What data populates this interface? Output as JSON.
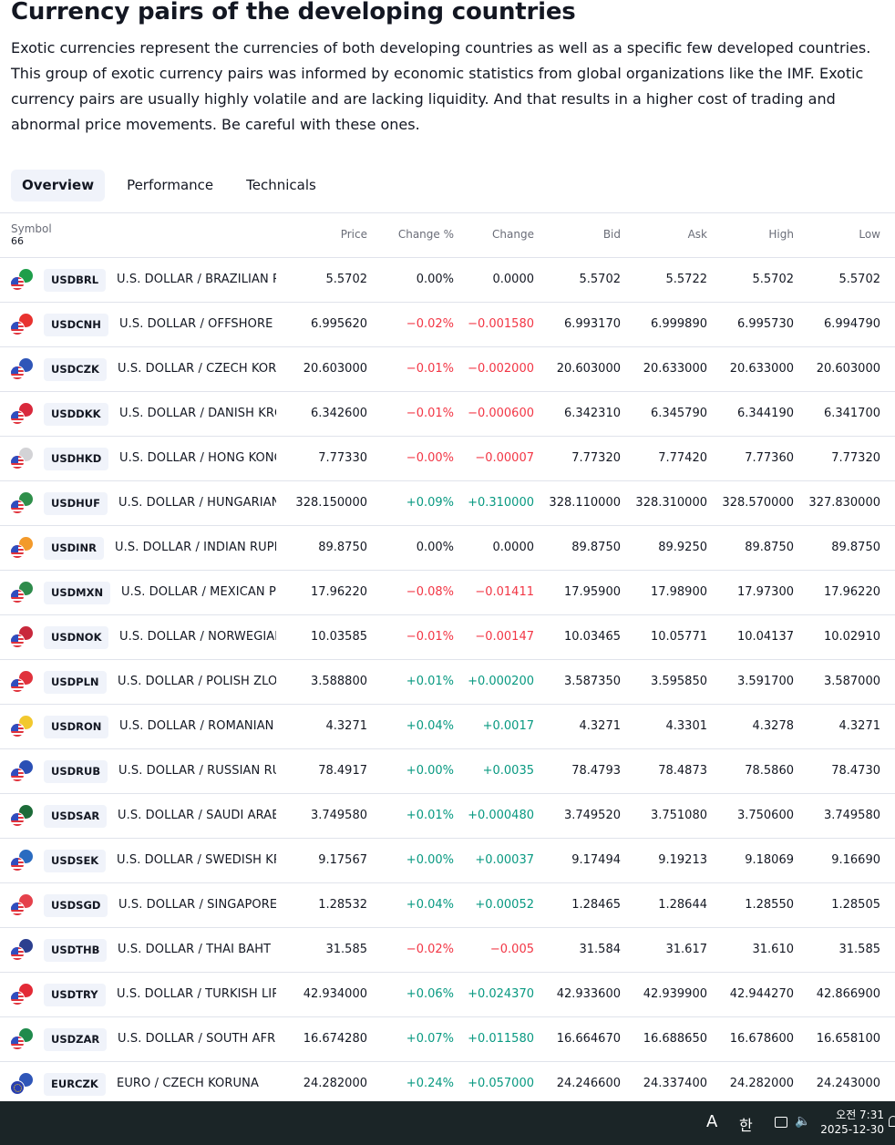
{
  "page": {
    "title": "Currency pairs of the developing countries",
    "intro": "Exotic currencies represent the currencies of both developing countries as well as a specific few developed countries. This group of exotic currency pairs was informed by economic statistics from global organizations like the IMF. Exotic currency pairs are usually highly volatile and are lacking liquidity. And that results in a higher cost of trading and abnormal price movements. Be careful with these ones."
  },
  "tabs": [
    {
      "label": "Overview",
      "active": true
    },
    {
      "label": "Performance",
      "active": false
    },
    {
      "label": "Technicals",
      "active": false
    }
  ],
  "table": {
    "headers": {
      "symbol": "Symbol",
      "count": "66",
      "price": "Price",
      "change_pct": "Change %",
      "change": "Change",
      "bid": "Bid",
      "ask": "Ask",
      "high": "High",
      "low": "Low"
    },
    "rows": [
      {
        "ticker": "USDBRL",
        "desc": "U.S. DOLLAR / BRAZILIAN R...",
        "price": "5.5702",
        "chg_pct": "0.00%",
        "chg": "0.0000",
        "bid": "5.5702",
        "ask": "5.5722",
        "high": "5.5702",
        "low": "5.5702",
        "dir": "neu",
        "flag_color": "#1e9e4a"
      },
      {
        "ticker": "USDCNH",
        "desc": "U.S. DOLLAR / OFFSHORE C...",
        "price": "6.995620",
        "chg_pct": "−0.02%",
        "chg": "−0.001580",
        "bid": "6.993170",
        "ask": "6.999890",
        "high": "6.995730",
        "low": "6.994790",
        "dir": "neg",
        "flag_color": "#e8322f"
      },
      {
        "ticker": "USDCZK",
        "desc": "U.S. DOLLAR / CZECH KORU...",
        "price": "20.603000",
        "chg_pct": "−0.01%",
        "chg": "−0.002000",
        "bid": "20.603000",
        "ask": "20.633000",
        "high": "20.633000",
        "low": "20.603000",
        "dir": "neg",
        "flag_color": "#2f56b8"
      },
      {
        "ticker": "USDDKK",
        "desc": "U.S. DOLLAR / DANISH KRONE",
        "price": "6.342600",
        "chg_pct": "−0.01%",
        "chg": "−0.000600",
        "bid": "6.342310",
        "ask": "6.345790",
        "high": "6.344190",
        "low": "6.341700",
        "dir": "neg",
        "flag_color": "#d9293c"
      },
      {
        "ticker": "USDHKD",
        "desc": "U.S. DOLLAR / HONG KONG ...",
        "price": "7.77330",
        "chg_pct": "−0.00%",
        "chg": "−0.00007",
        "bid": "7.77320",
        "ask": "7.77420",
        "high": "7.77360",
        "low": "7.77320",
        "dir": "neg",
        "flag_color": "#d3d3d6"
      },
      {
        "ticker": "USDHUF",
        "desc": "U.S. DOLLAR / HUNGARIAN ...",
        "price": "328.150000",
        "chg_pct": "+0.09%",
        "chg": "+0.310000",
        "bid": "328.110000",
        "ask": "328.310000",
        "high": "328.570000",
        "low": "327.830000",
        "dir": "pos",
        "flag_color": "#2f8f4a"
      },
      {
        "ticker": "USDINR",
        "desc": "U.S. DOLLAR / INDIAN RUPEE",
        "price": "89.8750",
        "chg_pct": "0.00%",
        "chg": "0.0000",
        "bid": "89.8750",
        "ask": "89.9250",
        "high": "89.8750",
        "low": "89.8750",
        "dir": "neu",
        "flag_color": "#f39a2b"
      },
      {
        "ticker": "USDMXN",
        "desc": "U.S. DOLLAR / MEXICAN PESO",
        "price": "17.96220",
        "chg_pct": "−0.08%",
        "chg": "−0.01411",
        "bid": "17.95900",
        "ask": "17.98900",
        "high": "17.97300",
        "low": "17.96220",
        "dir": "neg",
        "flag_color": "#2e8b4b"
      },
      {
        "ticker": "USDNOK",
        "desc": "U.S. DOLLAR / NORWEGIAN ...",
        "price": "10.03585",
        "chg_pct": "−0.01%",
        "chg": "−0.00147",
        "bid": "10.03465",
        "ask": "10.05771",
        "high": "10.04137",
        "low": "10.02910",
        "dir": "neg",
        "flag_color": "#c8283c"
      },
      {
        "ticker": "USDPLN",
        "desc": "U.S. DOLLAR / POLISH ZLOTY",
        "price": "3.588800",
        "chg_pct": "+0.01%",
        "chg": "+0.000200",
        "bid": "3.587350",
        "ask": "3.595850",
        "high": "3.591700",
        "low": "3.587000",
        "dir": "pos",
        "flag_color": "#e0323c"
      },
      {
        "ticker": "USDRON",
        "desc": "U.S. DOLLAR / ROMANIAN L...",
        "price": "4.3271",
        "chg_pct": "+0.04%",
        "chg": "+0.0017",
        "bid": "4.3271",
        "ask": "4.3301",
        "high": "4.3278",
        "low": "4.3271",
        "dir": "pos",
        "flag_color": "#f2c82e"
      },
      {
        "ticker": "USDRUB",
        "desc": "U.S. DOLLAR / RUSSIAN RUB...",
        "price": "78.4917",
        "chg_pct": "+0.00%",
        "chg": "+0.0035",
        "bid": "78.4793",
        "ask": "78.4873",
        "high": "78.5860",
        "low": "78.4730",
        "dir": "pos",
        "flag_color": "#2a4fb5"
      },
      {
        "ticker": "USDSAR",
        "desc": "U.S. DOLLAR / SAUDI ARABI...",
        "price": "3.749580",
        "chg_pct": "+0.01%",
        "chg": "+0.000480",
        "bid": "3.749520",
        "ask": "3.751080",
        "high": "3.750600",
        "low": "3.749580",
        "dir": "pos",
        "flag_color": "#1c6b38"
      },
      {
        "ticker": "USDSEK",
        "desc": "U.S. DOLLAR / SWEDISH KRO...",
        "price": "9.17567",
        "chg_pct": "+0.00%",
        "chg": "+0.00037",
        "bid": "9.17494",
        "ask": "9.19213",
        "high": "9.18069",
        "low": "9.16690",
        "dir": "pos",
        "flag_color": "#2a6bc0"
      },
      {
        "ticker": "USDSGD",
        "desc": "U.S. DOLLAR / SINGAPORE D...",
        "price": "1.28532",
        "chg_pct": "+0.04%",
        "chg": "+0.00052",
        "bid": "1.28465",
        "ask": "1.28644",
        "high": "1.28550",
        "low": "1.28505",
        "dir": "pos",
        "flag_color": "#e5414b"
      },
      {
        "ticker": "USDTHB",
        "desc": "U.S. DOLLAR / THAI BAHT",
        "price": "31.585",
        "chg_pct": "−0.02%",
        "chg": "−0.005",
        "bid": "31.584",
        "ask": "31.617",
        "high": "31.610",
        "low": "31.585",
        "dir": "neg",
        "flag_color": "#2c3f8f"
      },
      {
        "ticker": "USDTRY",
        "desc": "U.S. DOLLAR / TURKISH LIRA",
        "price": "42.934000",
        "chg_pct": "+0.06%",
        "chg": "+0.024370",
        "bid": "42.933600",
        "ask": "42.939900",
        "high": "42.944270",
        "low": "42.866900",
        "dir": "pos",
        "flag_color": "#e32a36"
      },
      {
        "ticker": "USDZAR",
        "desc": "U.S. DOLLAR / SOUTH AFRIC...",
        "price": "16.674280",
        "chg_pct": "+0.07%",
        "chg": "+0.011580",
        "bid": "16.664670",
        "ask": "16.688650",
        "high": "16.678600",
        "low": "16.658100",
        "dir": "pos",
        "flag_color": "#1f8a4c"
      },
      {
        "ticker": "EURCZK",
        "desc": "EURO / CZECH KORUNA",
        "price": "24.282000",
        "chg_pct": "+0.24%",
        "chg": "+0.057000",
        "bid": "24.246600",
        "ask": "24.337400",
        "high": "24.282000",
        "low": "24.243000",
        "dir": "pos",
        "flag_color": "#2f56b8",
        "base": "eu"
      }
    ]
  },
  "taskbar": {
    "ime_label": "A",
    "lang_label": "한",
    "time": "오전 7:31",
    "date": "2025-12-30"
  },
  "colors": {
    "positive": "#089981",
    "negative": "#f23645",
    "tab_active_bg": "#f0f3fa",
    "taskbar_bg": "#1b2527"
  }
}
